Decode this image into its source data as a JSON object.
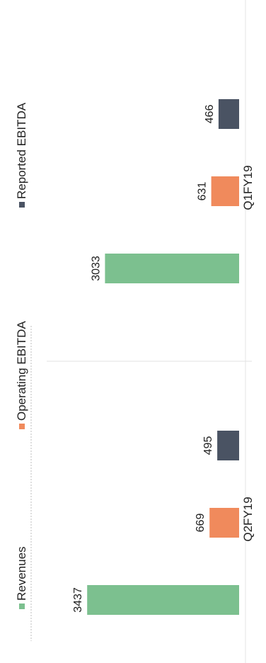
{
  "chart_data": {
    "type": "bar",
    "orientation": "rotated-90-ccw",
    "categories": [
      "Q2FY19",
      "Q1FY19"
    ],
    "series": [
      {
        "name": "Revenues",
        "values": [
          3437,
          3033
        ],
        "color": "#7cc08f"
      },
      {
        "name": "Operating EBITDA",
        "values": [
          669,
          631
        ],
        "color": "#f08a5c"
      },
      {
        "name": "Reported EBITDA",
        "values": [
          495,
          466
        ],
        "color": "#4a5363"
      }
    ],
    "data_labels": [
      "3437",
      "669",
      "495",
      "3033",
      "631",
      "466"
    ],
    "legend_position": "top",
    "ylim": [
      0,
      3600
    ]
  }
}
